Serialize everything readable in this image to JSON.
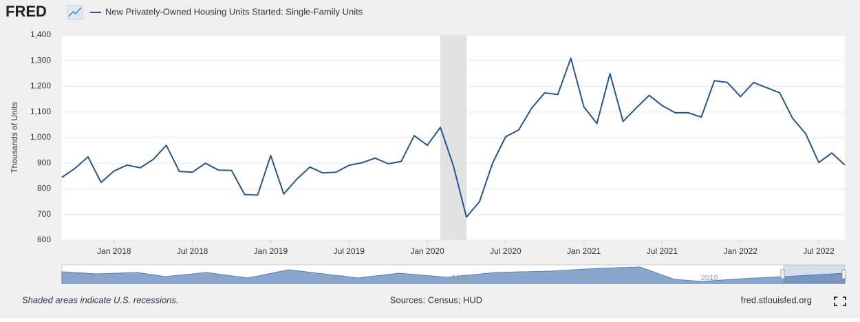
{
  "header": {
    "logo": "FRED"
  },
  "chart_data": {
    "type": "line",
    "y_label": "Thousands of Units",
    "x": [
      "2017-09",
      "2017-10",
      "2017-11",
      "2017-12",
      "2018-01",
      "2018-02",
      "2018-03",
      "2018-04",
      "2018-05",
      "2018-06",
      "2018-07",
      "2018-08",
      "2018-09",
      "2018-10",
      "2018-11",
      "2018-12",
      "2019-01",
      "2019-02",
      "2019-03",
      "2019-04",
      "2019-05",
      "2019-06",
      "2019-07",
      "2019-08",
      "2019-09",
      "2019-10",
      "2019-11",
      "2019-12",
      "2020-01",
      "2020-02",
      "2020-03",
      "2020-04",
      "2020-05",
      "2020-06",
      "2020-07",
      "2020-08",
      "2020-09",
      "2020-10",
      "2020-11",
      "2020-12",
      "2021-01",
      "2021-02",
      "2021-03",
      "2021-04",
      "2021-05",
      "2021-06",
      "2021-07",
      "2021-08",
      "2021-09",
      "2021-10",
      "2021-11",
      "2021-12",
      "2022-01",
      "2022-02",
      "2022-03",
      "2022-04",
      "2022-05",
      "2022-06",
      "2022-07",
      "2022-08",
      "2022-09"
    ],
    "series": [
      {
        "name": "New Privately-Owned Housing Units Started: Single-Family Units",
        "color": "#27548f",
        "values": [
          845,
          880,
          925,
          825,
          870,
          893,
          882,
          915,
          970,
          868,
          865,
          900,
          873,
          872,
          778,
          776,
          930,
          780,
          838,
          885,
          862,
          865,
          892,
          902,
          920,
          898,
          907,
          1008,
          970,
          1040,
          890,
          690,
          750,
          900,
          1003,
          1030,
          1115,
          1175,
          1168,
          1310,
          1120,
          1055,
          1250,
          1063,
          1115,
          1165,
          1125,
          1097,
          1097,
          1080,
          1222,
          1215,
          1160,
          1215,
          1195,
          1175,
          1075,
          1015,
          903,
          940,
          893
        ]
      }
    ],
    "xlim": [
      "2017-09",
      "2022-09"
    ],
    "xticks": [
      {
        "value": "2018-01",
        "label": "Jan 2018"
      },
      {
        "value": "2018-07",
        "label": "Jul 2018"
      },
      {
        "value": "2019-01",
        "label": "Jan 2019"
      },
      {
        "value": "2019-07",
        "label": "Jul 2019"
      },
      {
        "value": "2020-01",
        "label": "Jan 2020"
      },
      {
        "value": "2020-07",
        "label": "Jul 2020"
      },
      {
        "value": "2021-01",
        "label": "Jan 2021"
      },
      {
        "value": "2021-07",
        "label": "Jul 2021"
      },
      {
        "value": "2022-01",
        "label": "Jan 2022"
      },
      {
        "value": "2022-07",
        "label": "Jul 2022"
      }
    ],
    "ylim": [
      600,
      1400
    ],
    "yticks": [
      600,
      700,
      800,
      900,
      {
        "value": 1000,
        "label": "1,000"
      },
      {
        "value": 1100,
        "label": "1,100"
      },
      {
        "value": 1200,
        "label": "1,200"
      },
      {
        "value": 1300,
        "label": "1,300"
      },
      {
        "value": 1400,
        "label": "1,400"
      }
    ],
    "grid": true,
    "recessions": [
      {
        "start": "2020-02",
        "end": "2020-04"
      }
    ]
  },
  "navigator": {
    "labels": [
      "1960",
      "1970",
      "1980",
      "1990",
      "2000",
      "2010",
      "2020"
    ]
  },
  "footer": {
    "note": "Shaded areas indicate U.S. recessions.",
    "sources": "Sources: Census; HUD",
    "site": "fred.stlouisfed.org"
  }
}
